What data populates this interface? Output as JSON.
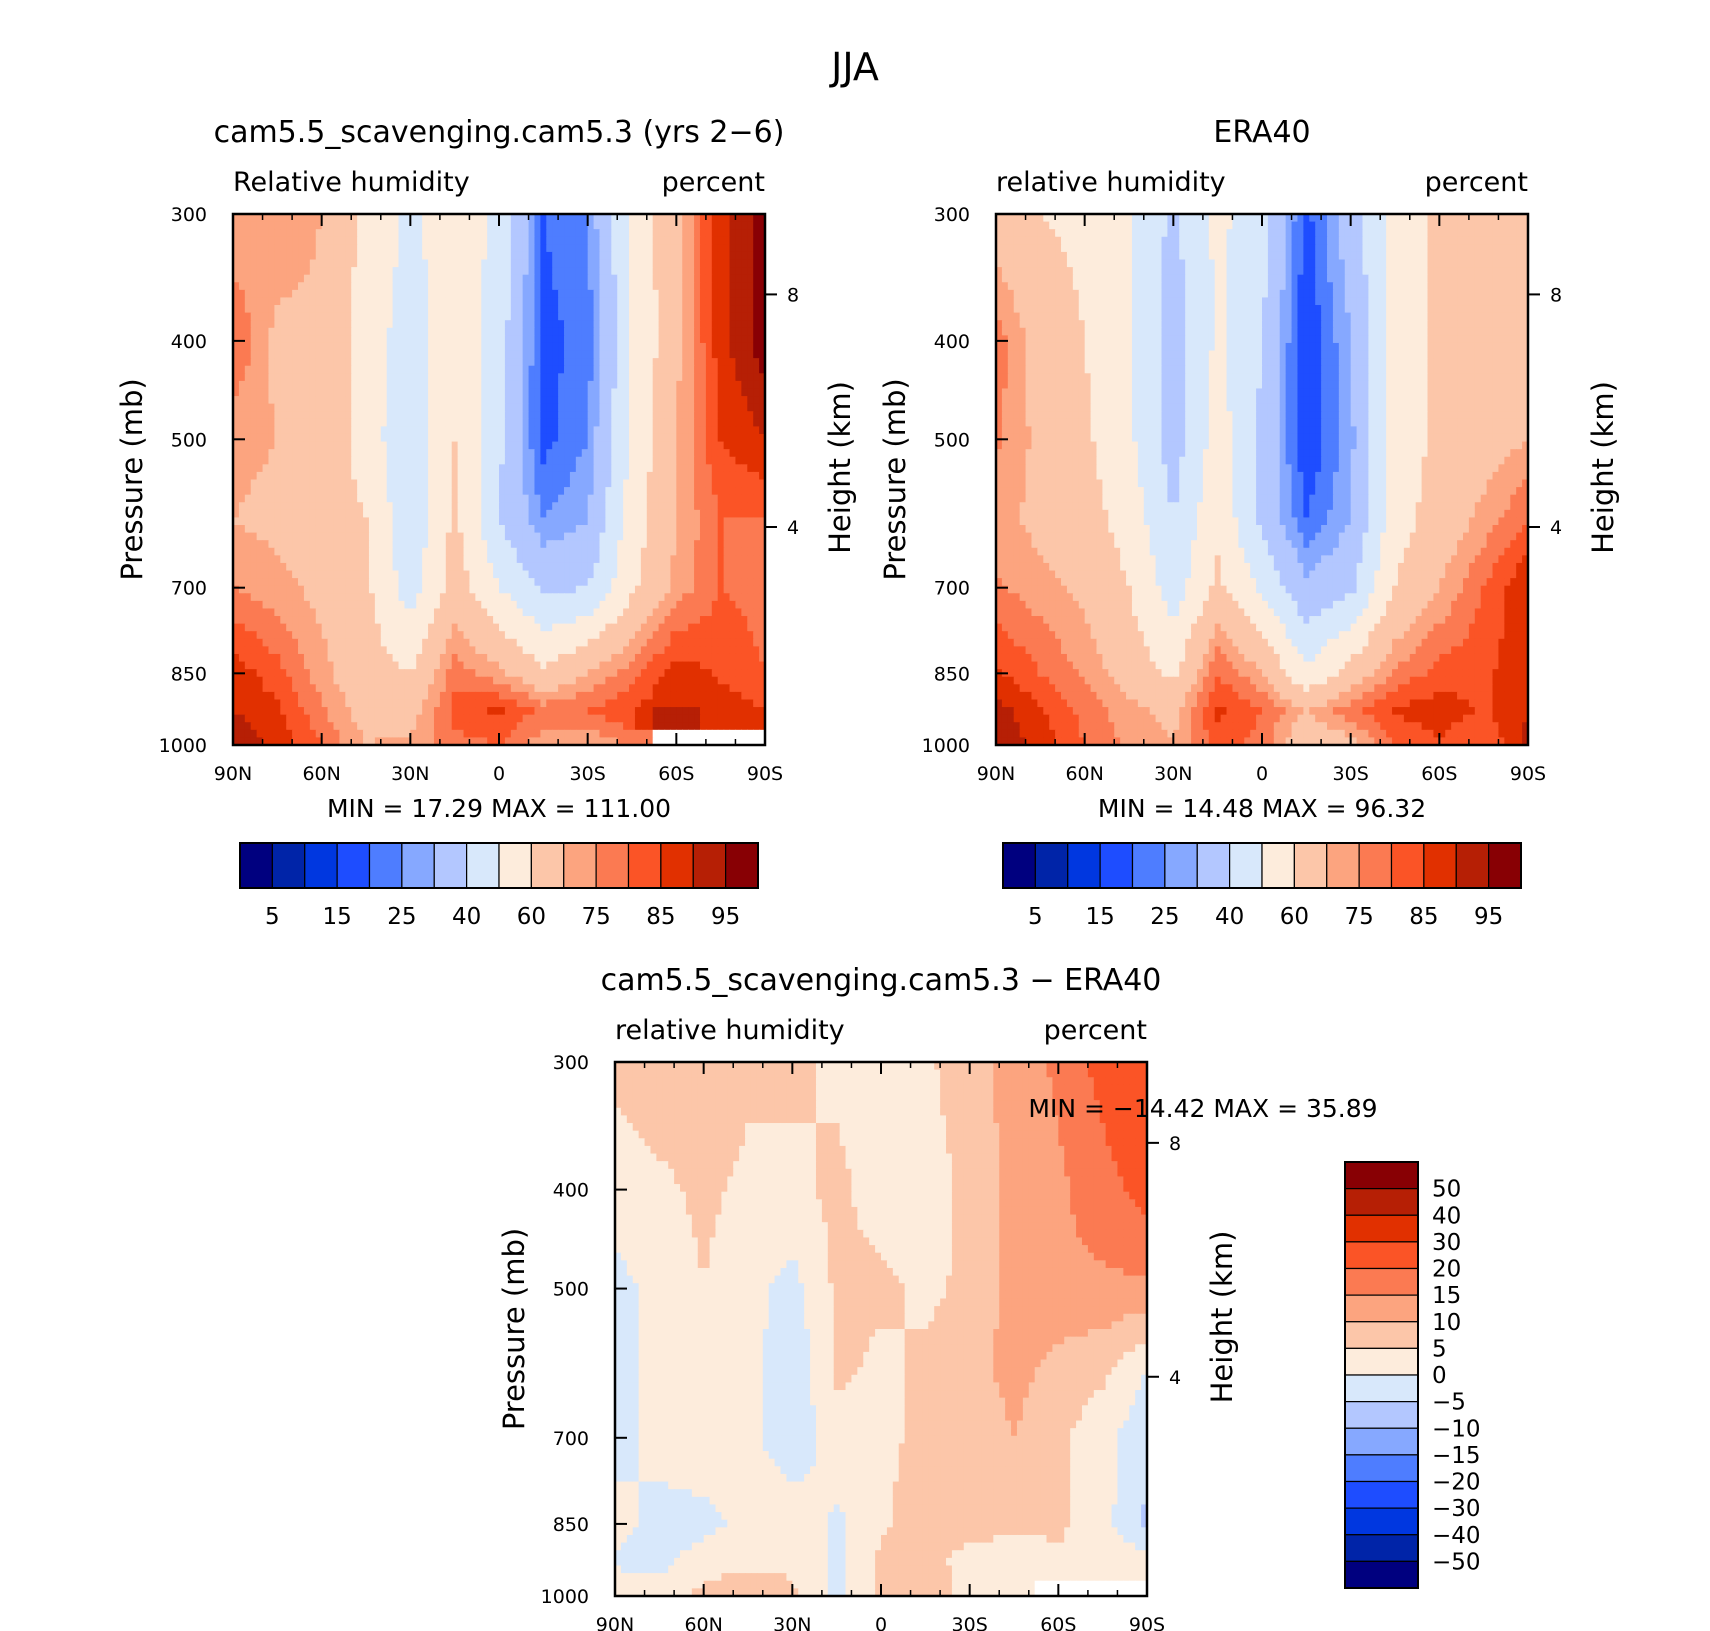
{
  "figure_title": "JJA",
  "colors": {
    "blue_to_red": [
      "#00007f",
      "#0024a8",
      "#0037e0",
      "#1e4dff",
      "#4e7dff",
      "#86a8ff",
      "#b3c7ff",
      "#d8e8fb",
      "#fdecdc",
      "#fcc6a9",
      "#fca47f",
      "#fb7a52",
      "#fb5426",
      "#e13000",
      "#b61f05",
      "#880004"
    ],
    "diff": [
      "#00007f",
      "#0024a8",
      "#0037e0",
      "#1e4dff",
      "#4e7dff",
      "#86a8ff",
      "#b3c7ff",
      "#d8e8fb",
      "#fdecdc",
      "#fcc6a9",
      "#fca47f",
      "#fb7a52",
      "#fb5426",
      "#e13000",
      "#b61f05",
      "#880004"
    ]
  },
  "chart_data": [
    {
      "type": "heatmap",
      "title": "cam5.5_scavenging.cam5.3 (yrs 2−6)",
      "subtitle_left": "Relative humidity",
      "subtitle_right": "percent",
      "ylabel": "Pressure (mb)",
      "ylabel_right": "Height (km)",
      "x_tick_labels": [
        "90N",
        "60N",
        "30N",
        "0",
        "30S",
        "60S",
        "90S"
      ],
      "y_tick_labels": [
        "300",
        "400",
        "500",
        "700",
        "850",
        "1000"
      ],
      "y_ticks": [
        300,
        400,
        500,
        700,
        850,
        1000
      ],
      "right_ticks": [
        8,
        4
      ],
      "xlim": [
        90,
        -90
      ],
      "ylim": [
        1000,
        300
      ],
      "min_text": "MIN =   17.29   MAX =  111.00",
      "min": 17.29,
      "max": 111.0,
      "colorbar_labels": [
        "5",
        "15",
        "25",
        "40",
        "60",
        "75",
        "85",
        "95"
      ],
      "levels": [
        5,
        10,
        15,
        20,
        25,
        30,
        40,
        50,
        60,
        70,
        75,
        80,
        85,
        90,
        95
      ],
      "x": [
        90,
        75,
        60,
        45,
        30,
        15,
        0,
        -15,
        -30,
        -45,
        -60,
        -75,
        -90
      ],
      "rows": [
        {
          "p": 300,
          "values": [
            70,
            75,
            70,
            58,
            48,
            55,
            48,
            20,
            25,
            52,
            68,
            88,
            98
          ]
        },
        {
          "p": 400,
          "values": [
            80,
            68,
            68,
            55,
            45,
            58,
            45,
            18,
            22,
            50,
            68,
            88,
            98
          ]
        },
        {
          "p": 500,
          "values": [
            72,
            70,
            68,
            55,
            42,
            60,
            42,
            18,
            25,
            52,
            70,
            85,
            90
          ]
        },
        {
          "p": 600,
          "values": [
            70,
            68,
            66,
            60,
            42,
            62,
            40,
            25,
            30,
            55,
            70,
            80,
            80
          ]
        },
        {
          "p": 700,
          "values": [
            75,
            72,
            68,
            62,
            45,
            65,
            50,
            38,
            40,
            58,
            72,
            80,
            78
          ]
        },
        {
          "p": 850,
          "values": [
            88,
            82,
            72,
            64,
            60,
            78,
            72,
            62,
            70,
            78,
            88,
            84,
            80
          ]
        },
        {
          "p": 925,
          "values": [
            90,
            86,
            76,
            66,
            66,
            82,
            86,
            78,
            80,
            85,
            90,
            88,
            85
          ]
        },
        {
          "p": 1000,
          "values": [
            95,
            88,
            80,
            70,
            72,
            78,
            80,
            72,
            70,
            76,
            null,
            null,
            null
          ]
        }
      ]
    },
    {
      "type": "heatmap",
      "title": "ERA40",
      "subtitle_left": "relative humidity",
      "subtitle_right": "percent",
      "ylabel": "Pressure (mb)",
      "ylabel_right": "Height (km)",
      "x_tick_labels": [
        "90N",
        "60N",
        "30N",
        "0",
        "30S",
        "60S",
        "90S"
      ],
      "y_tick_labels": [
        "300",
        "400",
        "500",
        "700",
        "850",
        "1000"
      ],
      "y_ticks": [
        300,
        400,
        500,
        700,
        850,
        1000
      ],
      "right_ticks": [
        8,
        4
      ],
      "xlim": [
        90,
        -90
      ],
      "ylim": [
        1000,
        300
      ],
      "min_text": "MIN =   14.48   MAX =   96.32",
      "min": 14.48,
      "max": 96.32,
      "colorbar_labels": [
        "5",
        "15",
        "25",
        "40",
        "60",
        "75",
        "85",
        "95"
      ],
      "levels": [
        5,
        10,
        15,
        20,
        25,
        30,
        40,
        50,
        60,
        70,
        75,
        80,
        85,
        90,
        95
      ],
      "x": [
        90,
        75,
        60,
        45,
        30,
        15,
        0,
        -15,
        -30,
        -45,
        -60,
        -75,
        -90
      ],
      "rows": [
        {
          "p": 300,
          "values": [
            65,
            60,
            58,
            50,
            38,
            52,
            45,
            18,
            35,
            55,
            62,
            66,
            70
          ]
        },
        {
          "p": 400,
          "values": [
            78,
            66,
            60,
            50,
            35,
            52,
            40,
            15,
            30,
            55,
            62,
            66,
            70
          ]
        },
        {
          "p": 500,
          "values": [
            76,
            68,
            62,
            52,
            35,
            55,
            38,
            15,
            28,
            55,
            62,
            66,
            70
          ]
        },
        {
          "p": 600,
          "values": [
            72,
            68,
            64,
            56,
            40,
            58,
            38,
            20,
            30,
            56,
            64,
            72,
            80
          ]
        },
        {
          "p": 700,
          "values": [
            76,
            72,
            68,
            60,
            45,
            62,
            48,
            32,
            38,
            60,
            70,
            80,
            90
          ]
        },
        {
          "p": 850,
          "values": [
            86,
            80,
            74,
            66,
            58,
            80,
            70,
            52,
            64,
            76,
            82,
            84,
            88
          ]
        },
        {
          "p": 925,
          "values": [
            92,
            86,
            78,
            72,
            68,
            86,
            80,
            70,
            78,
            86,
            88,
            84,
            90
          ]
        },
        {
          "p": 1000,
          "values": [
            94,
            88,
            80,
            74,
            70,
            82,
            78,
            62,
            68,
            80,
            84,
            80,
            92
          ]
        }
      ]
    },
    {
      "type": "heatmap",
      "title": "cam5.5_scavenging.cam5.3 − ERA40",
      "subtitle_left": "relative humidity",
      "subtitle_right": "percent",
      "ylabel": "Pressure (mb)",
      "ylabel_right": "Height (km)",
      "x_tick_labels": [
        "90N",
        "60N",
        "30N",
        "0",
        "30S",
        "60S",
        "90S"
      ],
      "y_tick_labels": [
        "300",
        "400",
        "500",
        "700",
        "850",
        "1000"
      ],
      "y_ticks": [
        300,
        400,
        500,
        700,
        850,
        1000
      ],
      "right_ticks": [
        8,
        4
      ],
      "xlim": [
        90,
        -90
      ],
      "ylim": [
        1000,
        300
      ],
      "min_text": "MIN = −14.42   MAX =   35.89",
      "min": -14.42,
      "max": 35.89,
      "colorbar_labels": [
        "50",
        "40",
        "30",
        "20",
        "15",
        "10",
        "5",
        "0",
        "−5",
        "−10",
        "−15",
        "−20",
        "−30",
        "−40",
        "−50"
      ],
      "levels": [
        -50,
        -40,
        -30,
        -20,
        -15,
        -10,
        -5,
        0,
        5,
        10,
        15,
        20,
        30,
        40,
        50
      ],
      "x": [
        90,
        75,
        60,
        45,
        30,
        15,
        0,
        -15,
        -30,
        -45,
        -60,
        -75,
        -90
      ],
      "rows": [
        {
          "p": 300,
          "values": [
            6,
            8,
            8,
            6,
            6,
            4,
            3,
            4,
            8,
            12,
            16,
            22,
            28
          ]
        },
        {
          "p": 400,
          "values": [
            3,
            4,
            6,
            4,
            4,
            6,
            3,
            3,
            6,
            12,
            14,
            18,
            22
          ]
        },
        {
          "p": 500,
          "values": [
            -2,
            2,
            5,
            2,
            -2,
            6,
            6,
            4,
            6,
            12,
            14,
            14,
            14
          ]
        },
        {
          "p": 600,
          "values": [
            -2,
            2,
            4,
            2,
            -4,
            6,
            4,
            6,
            8,
            12,
            8,
            6,
            0
          ]
        },
        {
          "p": 700,
          "values": [
            -2,
            2,
            4,
            2,
            -4,
            3,
            4,
            6,
            6,
            10,
            6,
            2,
            -4
          ]
        },
        {
          "p": 850,
          "values": [
            2,
            -2,
            -2,
            2,
            4,
            -1,
            4,
            8,
            8,
            6,
            6,
            2,
            -6
          ]
        },
        {
          "p": 925,
          "values": [
            -1,
            -2,
            3,
            4,
            4,
            -1,
            6,
            8,
            2,
            2,
            4,
            4,
            2
          ]
        },
        {
          "p": 1000,
          "values": [
            4,
            4,
            6,
            8,
            6,
            -1,
            6,
            10,
            2,
            4,
            null,
            null,
            null
          ]
        }
      ]
    }
  ]
}
